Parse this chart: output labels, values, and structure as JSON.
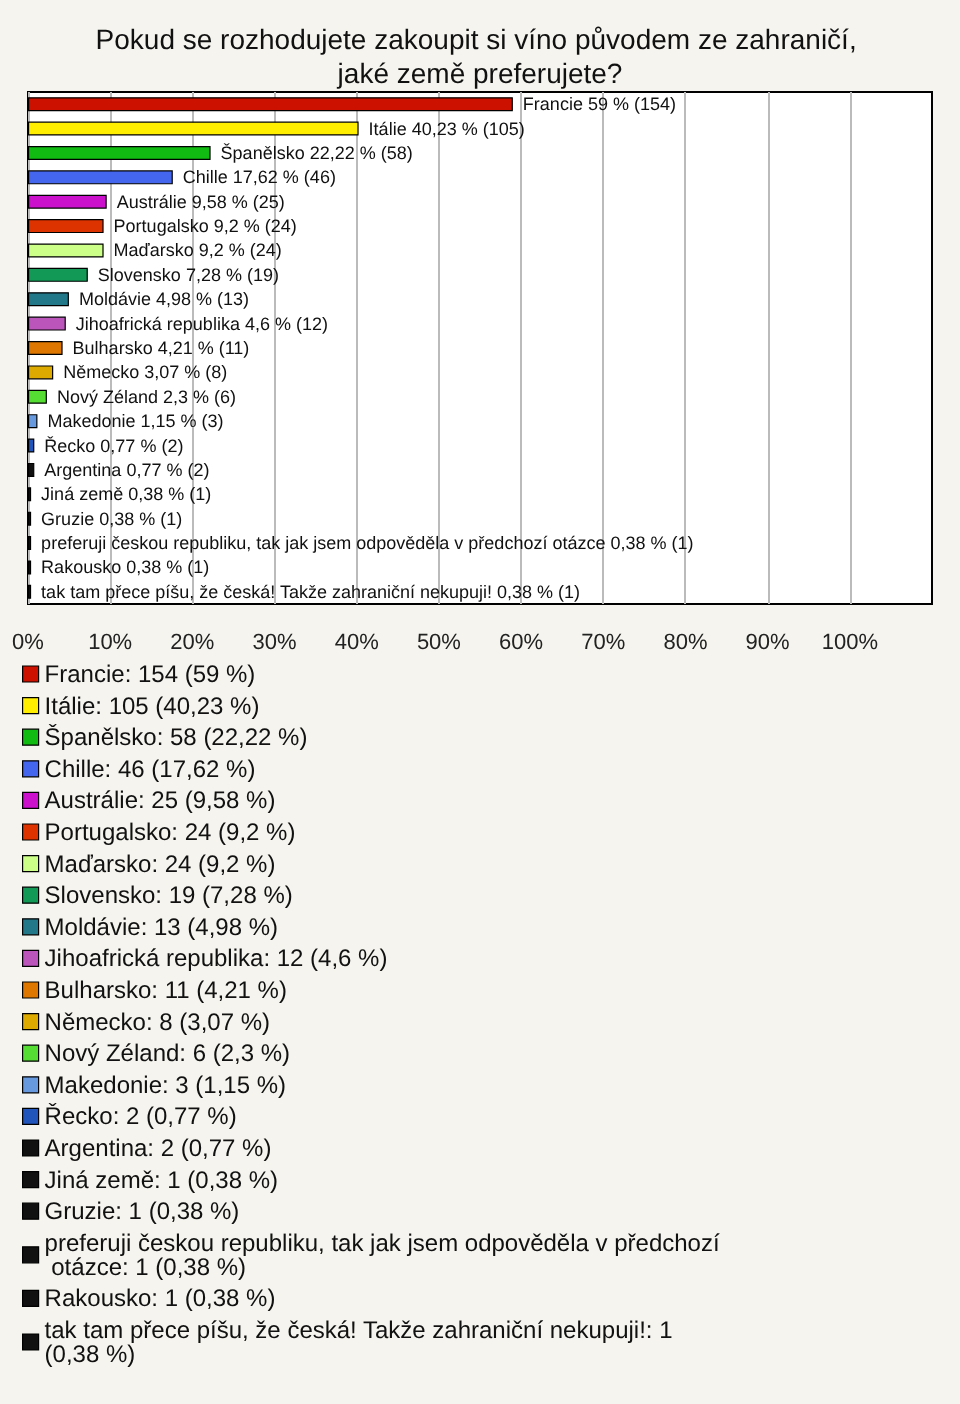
{
  "chart_data": {
    "type": "bar",
    "orientation": "horizontal",
    "stacked": true,
    "title": "Pokud se rozhodujete zakoupit si víno původem ze zahraničí, jaké země preferujete?",
    "categories": [
      null,
      null,
      null,
      null,
      null,
      null,
      null,
      null,
      null,
      null,
      null,
      null,
      null,
      null,
      null,
      null,
      null,
      null,
      null,
      null,
      null
    ],
    "xlim": [
      0,
      110
    ],
    "xticks": [
      {
        "value": 0,
        "label": "0%"
      },
      {
        "value": 10,
        "label": "10%"
      },
      {
        "value": 20,
        "label": "20%"
      },
      {
        "value": 30,
        "label": "30%"
      },
      {
        "value": 40,
        "label": "40%"
      },
      {
        "value": 50,
        "label": "50%"
      },
      {
        "value": 60,
        "label": "60%"
      },
      {
        "value": 70,
        "label": "70%"
      },
      {
        "value": 80,
        "label": "80%"
      },
      {
        "value": 90,
        "label": "90%"
      },
      {
        "value": 100,
        "label": "100%"
      }
    ],
    "grid": "x",
    "legend": "bottom",
    "series": [
      {
        "name": "Francie: 154 (59 %)",
        "color": "#cc1100",
        "values": [
          59,
          null,
          null,
          null,
          null,
          null,
          null,
          null,
          null,
          null,
          null,
          null,
          null,
          null,
          null,
          null,
          null,
          null,
          null,
          null,
          null
        ],
        "value_labels": [
          "Francie 59 % (154)",
          null,
          null,
          null,
          null,
          null,
          null,
          null,
          null,
          null,
          null,
          null,
          null,
          null,
          null,
          null,
          null,
          null,
          null,
          null,
          null
        ]
      },
      {
        "name": "Itálie: 105 (40,23 %)",
        "color": "#ffee00",
        "values": [
          null,
          40.23,
          null,
          null,
          null,
          null,
          null,
          null,
          null,
          null,
          null,
          null,
          null,
          null,
          null,
          null,
          null,
          null,
          null,
          null,
          null
        ],
        "value_labels": [
          null,
          "Itálie 40,23 % (105)",
          null,
          null,
          null,
          null,
          null,
          null,
          null,
          null,
          null,
          null,
          null,
          null,
          null,
          null,
          null,
          null,
          null,
          null,
          null
        ]
      },
      {
        "name": "Španělsko: 58 (22,22 %)",
        "color": "#11bb11",
        "values": [
          null,
          null,
          22.22,
          null,
          null,
          null,
          null,
          null,
          null,
          null,
          null,
          null,
          null,
          null,
          null,
          null,
          null,
          null,
          null,
          null,
          null
        ],
        "value_labels": [
          null,
          null,
          "Španělsko 22,22 % (58)",
          null,
          null,
          null,
          null,
          null,
          null,
          null,
          null,
          null,
          null,
          null,
          null,
          null,
          null,
          null,
          null,
          null,
          null
        ]
      },
      {
        "name": "Chille: 46 (17,62 %)",
        "color": "#4466ee",
        "values": [
          null,
          null,
          null,
          17.62,
          null,
          null,
          null,
          null,
          null,
          null,
          null,
          null,
          null,
          null,
          null,
          null,
          null,
          null,
          null,
          null,
          null
        ],
        "value_labels": [
          null,
          null,
          null,
          "Chille 17,62 % (46)",
          null,
          null,
          null,
          null,
          null,
          null,
          null,
          null,
          null,
          null,
          null,
          null,
          null,
          null,
          null,
          null,
          null
        ]
      },
      {
        "name": "Austrálie: 25 (9,58 %)",
        "color": "#cc11cc",
        "values": [
          null,
          null,
          null,
          null,
          9.58,
          null,
          null,
          null,
          null,
          null,
          null,
          null,
          null,
          null,
          null,
          null,
          null,
          null,
          null,
          null,
          null
        ],
        "value_labels": [
          null,
          null,
          null,
          null,
          "Austrálie 9,58 % (25)",
          null,
          null,
          null,
          null,
          null,
          null,
          null,
          null,
          null,
          null,
          null,
          null,
          null,
          null,
          null,
          null
        ]
      },
      {
        "name": "Portugalsko: 24 (9,2 %)",
        "color": "#dd3300",
        "values": [
          null,
          null,
          null,
          null,
          null,
          9.2,
          null,
          null,
          null,
          null,
          null,
          null,
          null,
          null,
          null,
          null,
          null,
          null,
          null,
          null,
          null
        ],
        "value_labels": [
          null,
          null,
          null,
          null,
          null,
          "Portugalsko 9,2 % (24)",
          null,
          null,
          null,
          null,
          null,
          null,
          null,
          null,
          null,
          null,
          null,
          null,
          null,
          null,
          null
        ]
      },
      {
        "name": "Maďarsko: 24 (9,2 %)",
        "color": "#ccff88",
        "values": [
          null,
          null,
          null,
          null,
          null,
          null,
          9.2,
          null,
          null,
          null,
          null,
          null,
          null,
          null,
          null,
          null,
          null,
          null,
          null,
          null,
          null
        ],
        "value_labels": [
          null,
          null,
          null,
          null,
          null,
          null,
          "Maďarsko 9,2 % (24)",
          null,
          null,
          null,
          null,
          null,
          null,
          null,
          null,
          null,
          null,
          null,
          null,
          null,
          null
        ]
      },
      {
        "name": "Slovensko: 19 (7,28 %)",
        "color": "#119955",
        "values": [
          null,
          null,
          null,
          null,
          null,
          null,
          null,
          7.28,
          null,
          null,
          null,
          null,
          null,
          null,
          null,
          null,
          null,
          null,
          null,
          null,
          null
        ],
        "value_labels": [
          null,
          null,
          null,
          null,
          null,
          null,
          null,
          "Slovensko 7,28 % (19)",
          null,
          null,
          null,
          null,
          null,
          null,
          null,
          null,
          null,
          null,
          null,
          null,
          null
        ]
      },
      {
        "name": "Moldávie: 13 (4,98 %)",
        "color": "#227788",
        "values": [
          null,
          null,
          null,
          null,
          null,
          null,
          null,
          null,
          4.98,
          null,
          null,
          null,
          null,
          null,
          null,
          null,
          null,
          null,
          null,
          null,
          null
        ],
        "value_labels": [
          null,
          null,
          null,
          null,
          null,
          null,
          null,
          null,
          "Moldávie 4,98 % (13)",
          null,
          null,
          null,
          null,
          null,
          null,
          null,
          null,
          null,
          null,
          null,
          null
        ]
      },
      {
        "name": "Jihoafrická republika: 12 (4,6 %)",
        "color": "#bb55bb",
        "values": [
          null,
          null,
          null,
          null,
          null,
          null,
          null,
          null,
          null,
          4.6,
          null,
          null,
          null,
          null,
          null,
          null,
          null,
          null,
          null,
          null,
          null
        ],
        "value_labels": [
          null,
          null,
          null,
          null,
          null,
          null,
          null,
          null,
          null,
          "Jihoafrická republika 4,6 % (12)",
          null,
          null,
          null,
          null,
          null,
          null,
          null,
          null,
          null,
          null,
          null
        ]
      },
      {
        "name": "Bulharsko: 11 (4,21 %)",
        "color": "#dd7700",
        "values": [
          null,
          null,
          null,
          null,
          null,
          null,
          null,
          null,
          null,
          null,
          4.21,
          null,
          null,
          null,
          null,
          null,
          null,
          null,
          null,
          null,
          null
        ],
        "value_labels": [
          null,
          null,
          null,
          null,
          null,
          null,
          null,
          null,
          null,
          null,
          "Bulharsko 4,21 % (11)",
          null,
          null,
          null,
          null,
          null,
          null,
          null,
          null,
          null,
          null
        ]
      },
      {
        "name": "Německo: 8 (3,07 %)",
        "color": "#ddaa00",
        "values": [
          null,
          null,
          null,
          null,
          null,
          null,
          null,
          null,
          null,
          null,
          null,
          3.07,
          null,
          null,
          null,
          null,
          null,
          null,
          null,
          null,
          null
        ],
        "value_labels": [
          null,
          null,
          null,
          null,
          null,
          null,
          null,
          null,
          null,
          null,
          null,
          "Německo 3,07 % (8)",
          null,
          null,
          null,
          null,
          null,
          null,
          null,
          null,
          null
        ]
      },
      {
        "name": "Nový Zéland: 6 (2,3 %)",
        "color": "#55dd33",
        "values": [
          null,
          null,
          null,
          null,
          null,
          null,
          null,
          null,
          null,
          null,
          null,
          null,
          2.3,
          null,
          null,
          null,
          null,
          null,
          null,
          null,
          null
        ],
        "value_labels": [
          null,
          null,
          null,
          null,
          null,
          null,
          null,
          null,
          null,
          null,
          null,
          null,
          "Nový Zéland 2,3 % (6)",
          null,
          null,
          null,
          null,
          null,
          null,
          null,
          null
        ]
      },
      {
        "name": "Makedonie: 3 (1,15 %)",
        "color": "#6699dd",
        "values": [
          null,
          null,
          null,
          null,
          null,
          null,
          null,
          null,
          null,
          null,
          null,
          null,
          null,
          1.15,
          null,
          null,
          null,
          null,
          null,
          null,
          null
        ],
        "value_labels": [
          null,
          null,
          null,
          null,
          null,
          null,
          null,
          null,
          null,
          null,
          null,
          null,
          null,
          "Makedonie 1,15 % (3)",
          null,
          null,
          null,
          null,
          null,
          null,
          null
        ]
      },
      {
        "name": "Řecko: 2 (0,77 %)",
        "color": "#2255bb",
        "values": [
          null,
          null,
          null,
          null,
          null,
          null,
          null,
          null,
          null,
          null,
          null,
          null,
          null,
          null,
          0.77,
          null,
          null,
          null,
          null,
          null,
          null
        ],
        "value_labels": [
          null,
          null,
          null,
          null,
          null,
          null,
          null,
          null,
          null,
          null,
          null,
          null,
          null,
          null,
          "Řecko 0,77 % (2)",
          null,
          null,
          null,
          null,
          null,
          null
        ]
      },
      {
        "name": "Argentina: 2 (0,77 %)",
        "color": "#111111",
        "values": [
          null,
          null,
          null,
          null,
          null,
          null,
          null,
          null,
          null,
          null,
          null,
          null,
          null,
          null,
          null,
          0.77,
          null,
          null,
          null,
          null,
          null
        ],
        "value_labels": [
          null,
          null,
          null,
          null,
          null,
          null,
          null,
          null,
          null,
          null,
          null,
          null,
          null,
          null,
          null,
          "Argentina 0,77 % (2)",
          null,
          null,
          null,
          null,
          null
        ]
      },
      {
        "name": "Jiná země: 1 (0,38 %)",
        "color": "#111111",
        "values": [
          null,
          null,
          null,
          null,
          null,
          null,
          null,
          null,
          null,
          null,
          null,
          null,
          null,
          null,
          null,
          null,
          0.38,
          null,
          null,
          null,
          null
        ],
        "value_labels": [
          null,
          null,
          null,
          null,
          null,
          null,
          null,
          null,
          null,
          null,
          null,
          null,
          null,
          null,
          null,
          null,
          "Jiná země 0,38 % (1)",
          null,
          null,
          null,
          null
        ]
      },
      {
        "name": "Gruzie: 1 (0,38 %)",
        "color": "#111111",
        "values": [
          null,
          null,
          null,
          null,
          null,
          null,
          null,
          null,
          null,
          null,
          null,
          null,
          null,
          null,
          null,
          null,
          null,
          0.38,
          null,
          null,
          null
        ],
        "value_labels": [
          null,
          null,
          null,
          null,
          null,
          null,
          null,
          null,
          null,
          null,
          null,
          null,
          null,
          null,
          null,
          null,
          null,
          "Gruzie 0,38 % (1)",
          null,
          null,
          null
        ]
      },
      {
        "name": "preferuji českou republiku, tak jak jsem odpověděla v předchozí otázce: 1 (0,38 %)",
        "color": "#111111",
        "values": [
          null,
          null,
          null,
          null,
          null,
          null,
          null,
          null,
          null,
          null,
          null,
          null,
          null,
          null,
          null,
          null,
          null,
          null,
          0.38,
          null,
          null
        ],
        "value_labels": [
          null,
          null,
          null,
          null,
          null,
          null,
          null,
          null,
          null,
          null,
          null,
          null,
          null,
          null,
          null,
          null,
          null,
          null,
          "preferuji českou republiku, tak jak jsem odpověděla v předchozí otázce 0,38 % (1)",
          null,
          null
        ]
      },
      {
        "name": "Rakousko: 1 (0,38 %)",
        "color": "#111111",
        "values": [
          null,
          null,
          null,
          null,
          null,
          null,
          null,
          null,
          null,
          null,
          null,
          null,
          null,
          null,
          null,
          null,
          null,
          null,
          null,
          0.38,
          null
        ],
        "value_labels": [
          null,
          null,
          null,
          null,
          null,
          null,
          null,
          null,
          null,
          null,
          null,
          null,
          null,
          null,
          null,
          null,
          null,
          null,
          null,
          "Rakousko 0,38 % (1)",
          null
        ]
      },
      {
        "name": "tak tam přece píšu, že česká! Takže zahraniční nekupuji!: 1 (0,38 %)",
        "color": "#111111",
        "values": [
          null,
          null,
          null,
          null,
          null,
          null,
          null,
          null,
          null,
          null,
          null,
          null,
          null,
          null,
          null,
          null,
          null,
          null,
          null,
          null,
          0.38
        ],
        "value_labels": [
          null,
          null,
          null,
          null,
          null,
          null,
          null,
          null,
          null,
          null,
          null,
          null,
          null,
          null,
          null,
          null,
          null,
          null,
          null,
          null,
          "tak tam přece píšu, že česká! Takže zahraniční nekupuji! 0,38 % (1)"
        ]
      }
    ]
  }
}
